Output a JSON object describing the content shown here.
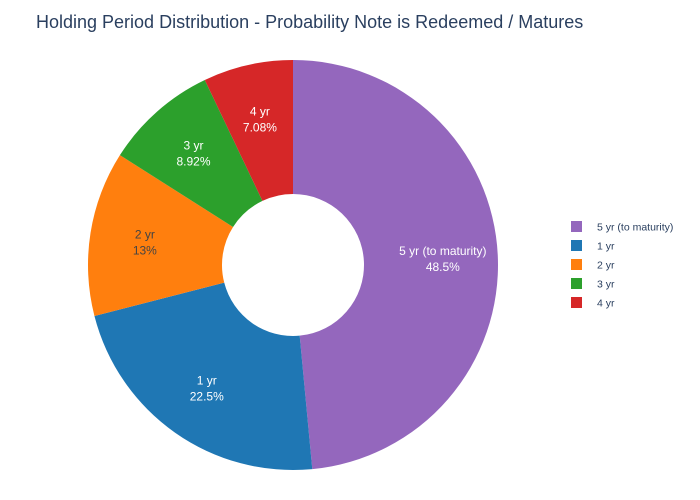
{
  "chart_data": {
    "type": "pie",
    "title": "Holding Period Distribution - Probability Note is Redeemed / Matures",
    "hole": true,
    "legend_position": "right",
    "slices": [
      {
        "label": "5 yr (to maturity)",
        "value": 48.5,
        "display": "48.5%",
        "color": "#9467bd",
        "text_color": "#ffffff"
      },
      {
        "label": "1 yr",
        "value": 22.5,
        "display": "22.5%",
        "color": "#1f77b4",
        "text_color": "#ffffff"
      },
      {
        "label": "2 yr",
        "value": 13,
        "display": "13%",
        "color": "#ff7f0e",
        "text_color": "#444444"
      },
      {
        "label": "3 yr",
        "value": 8.92,
        "display": "8.92%",
        "color": "#2ca02c",
        "text_color": "#ffffff"
      },
      {
        "label": "4 yr",
        "value": 7.08,
        "display": "7.08%",
        "color": "#d62728",
        "text_color": "#ffffff"
      }
    ]
  }
}
